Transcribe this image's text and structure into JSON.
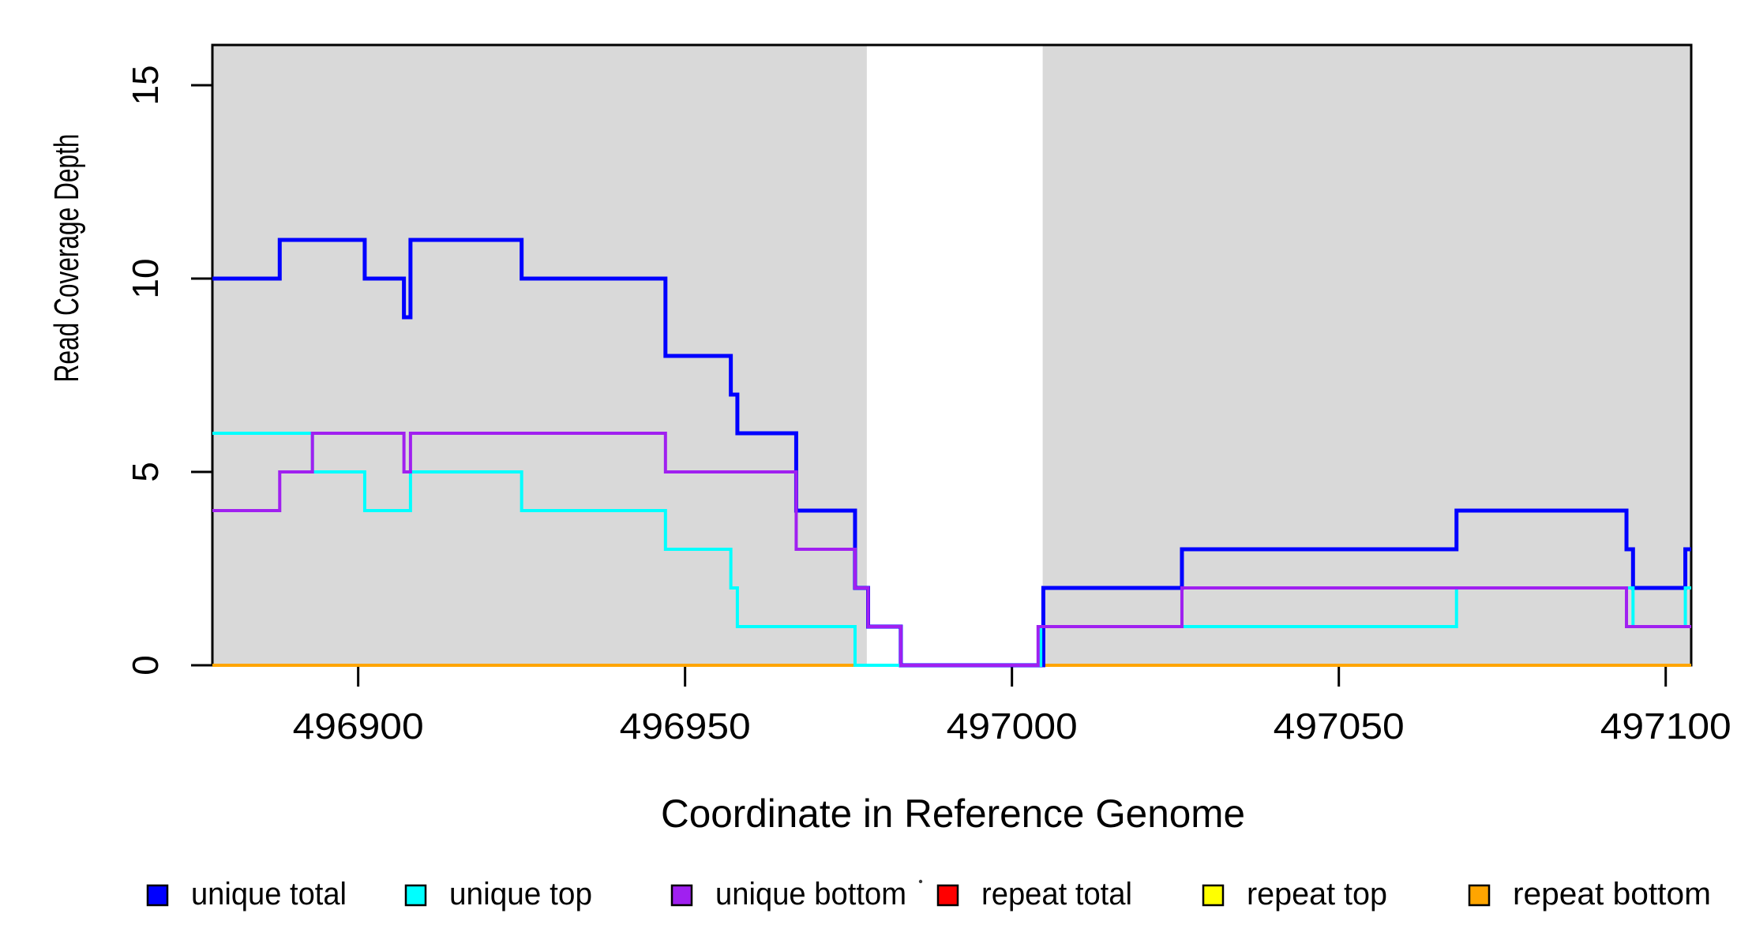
{
  "figure": {
    "background": "#FFFFFF"
  },
  "axis": {
    "x_title": "Coordinate in Reference Genome",
    "y_title": "Read Coverage Depth"
  },
  "legend": {
    "items": [
      {
        "label": "unique total",
        "color": "#0000FF"
      },
      {
        "label": "unique top",
        "color": "#00FFFF"
      },
      {
        "label": "unique bottom",
        "color": "#A020F0"
      },
      {
        "label": "repeat total",
        "color": "#FF0000"
      },
      {
        "label": "repeat top",
        "color": "#FFFF00"
      },
      {
        "label": "repeat bottom",
        "color": "#FFA500"
      }
    ]
  },
  "chart_data": {
    "type": "line",
    "subtype": "step",
    "title": "",
    "xlabel": "Coordinate in Reference Genome",
    "ylabel": "Read Coverage Depth",
    "xlim": [
      496877.7,
      497103.9
    ],
    "ylim": [
      0,
      16.04
    ],
    "grid": false,
    "legend_position": "bottom",
    "x_ticks": [
      {
        "value": 496900,
        "label": "496900"
      },
      {
        "value": 496950,
        "label": "496950"
      },
      {
        "value": 497000,
        "label": "497000"
      },
      {
        "value": 497050,
        "label": "497050"
      },
      {
        "value": 497100,
        "label": "497100"
      }
    ],
    "y_ticks": [
      {
        "value": 0,
        "label": "0"
      },
      {
        "value": 5,
        "label": "5"
      },
      {
        "value": 10,
        "label": "10"
      },
      {
        "value": 15,
        "label": "15"
      }
    ],
    "shaded_regions": [
      {
        "from": 496877.7,
        "to": 496977.8,
        "color": "#D9D9D9"
      },
      {
        "from": 497004.7,
        "to": 497103.9,
        "color": "#D9D9D9"
      }
    ],
    "series": [
      {
        "name": "repeat total",
        "color": "#FF0000",
        "steps": [
          [
            496877.7,
            0
          ]
        ],
        "end_x": 497103.9
      },
      {
        "name": "repeat top",
        "color": "#FFFF00",
        "steps": [
          [
            496877.7,
            0
          ]
        ],
        "end_x": 497103.9
      },
      {
        "name": "repeat bottom",
        "color": "#FFA500",
        "steps": [
          [
            496877.7,
            0
          ]
        ],
        "end_x": 497103.9
      },
      {
        "name": "unique total",
        "color": "#0000FF",
        "steps": [
          [
            496877.7,
            10
          ],
          [
            496888,
            11
          ],
          [
            496901,
            10
          ],
          [
            496907,
            9
          ],
          [
            496908,
            11
          ],
          [
            496925,
            10
          ],
          [
            496947,
            8
          ],
          [
            496957,
            7
          ],
          [
            496958,
            6
          ],
          [
            496967,
            4
          ],
          [
            496976,
            2
          ],
          [
            496978,
            1
          ],
          [
            496983,
            0
          ],
          [
            497004.8,
            2
          ],
          [
            497026,
            3
          ],
          [
            497068,
            4
          ],
          [
            497094,
            3
          ],
          [
            497095,
            2
          ],
          [
            497103,
            3
          ]
        ],
        "end_x": 497103.9
      },
      {
        "name": "unique top",
        "color": "#00FFFF",
        "steps": [
          [
            496877.7,
            6
          ],
          [
            496893,
            5
          ],
          [
            496901,
            4
          ],
          [
            496908,
            5
          ],
          [
            496925,
            4
          ],
          [
            496947,
            3
          ],
          [
            496957,
            2
          ],
          [
            496958,
            1
          ],
          [
            496976,
            0
          ],
          [
            497004.4,
            1
          ],
          [
            497068,
            2
          ],
          [
            497095,
            1
          ],
          [
            497103,
            2
          ]
        ],
        "end_x": 497103.9
      },
      {
        "name": "unique bottom",
        "color": "#A020F0",
        "steps": [
          [
            496877.7,
            4
          ],
          [
            496888,
            5
          ],
          [
            496893,
            6
          ],
          [
            496907,
            5
          ],
          [
            496908,
            6
          ],
          [
            496947,
            5
          ],
          [
            496967,
            3
          ],
          [
            496976,
            2
          ],
          [
            496978,
            1
          ],
          [
            496983,
            0
          ],
          [
            497004,
            1
          ],
          [
            497026,
            2
          ],
          [
            497094,
            1
          ]
        ],
        "end_x": 497103.9
      }
    ]
  }
}
